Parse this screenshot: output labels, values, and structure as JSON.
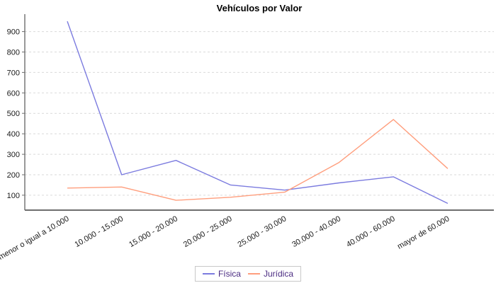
{
  "title": "Vehículos por Valor",
  "chart_data": {
    "type": "line",
    "title": "Vehículos por Valor",
    "categories": [
      "menor o igual a 10.000",
      "10.000 - 15.000",
      "15.000 - 20.000",
      "20.000 - 25.000",
      "25.000 - 30.000",
      "30.000 - 40.000",
      "40.000 - 60.000",
      "mayor de 60.000"
    ],
    "series": [
      {
        "name": "Física",
        "color": "#7b7bdf",
        "values": [
          950,
          200,
          270,
          150,
          125,
          160,
          190,
          60
        ]
      },
      {
        "name": "Jurídica",
        "color": "#ff9e7d",
        "values": [
          135,
          140,
          75,
          90,
          115,
          260,
          470,
          230
        ]
      }
    ],
    "xlabel": "",
    "ylabel": "",
    "y_ticks": [
      100,
      200,
      300,
      400,
      500,
      600,
      700,
      800,
      900
    ],
    "ylim": [
      27,
      985
    ],
    "grid": "horizontal-dashed",
    "legend_position": "bottom",
    "category_label_rotation_deg": -30
  },
  "legend": {
    "items": [
      {
        "label": "Física",
        "color": "#7b7bdf"
      },
      {
        "label": "Jurídica",
        "color": "#ff9e7d"
      }
    ]
  },
  "colors": {
    "background": "#ffffff",
    "gridline": "#d9d9d9",
    "axis": "#6e6e6e",
    "tick_text": "#1a1a1a",
    "legend_text": "#4b2c82",
    "legend_border": "#c8c8c8"
  }
}
